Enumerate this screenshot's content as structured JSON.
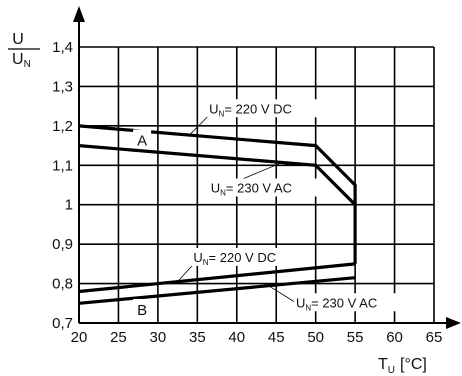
{
  "chart_data": {
    "type": "line",
    "title": "",
    "y_axis_label": {
      "numerator": "U",
      "denominator_main": "U",
      "denominator_sub": "N"
    },
    "x_axis_label": {
      "main": "T",
      "sub": "U",
      "unit": "[°C]"
    },
    "xlim": [
      20,
      65
    ],
    "ylim": [
      0.7,
      1.4
    ],
    "x_ticks": [
      20,
      25,
      30,
      35,
      40,
      45,
      50,
      55,
      60,
      65
    ],
    "x_tick_labels": [
      "20",
      "25",
      "30",
      "35",
      "40",
      "45",
      "50",
      "55",
      "60",
      "65"
    ],
    "y_ticks": [
      0.7,
      0.8,
      0.9,
      1.0,
      1.1,
      1.2,
      1.3,
      1.4
    ],
    "y_tick_labels": [
      "0,7",
      "0,8",
      "0,9",
      "1",
      "1,1",
      "1,2",
      "1,3",
      "1,4"
    ],
    "grid": true,
    "series": [
      {
        "name": "A",
        "x": [
          20,
          50,
          55,
          55
        ],
        "y": [
          1.2,
          1.15,
          1.05,
          1.0
        ]
      },
      {
        "name": "A",
        "x": [
          20,
          50,
          55,
          55
        ],
        "y": [
          1.15,
          1.1,
          1.0,
          0.85
        ]
      },
      {
        "name": "B",
        "x": [
          20,
          55
        ],
        "y": [
          0.78,
          0.85
        ]
      },
      {
        "name": "B",
        "x": [
          20,
          55
        ],
        "y": [
          0.75,
          0.815
        ]
      }
    ],
    "curve_labels": [
      {
        "text": "A",
        "x": 28,
        "y": 1.163
      },
      {
        "text": "B",
        "x": 28,
        "y": 0.733
      }
    ],
    "annotations": [
      {
        "prefix": "U",
        "sub": "N",
        "text": "= 220 V DC",
        "label_x": 36.5,
        "label_y": 1.237,
        "target_x": 34.0,
        "target_y": 1.177
      },
      {
        "prefix": "U",
        "sub": "N",
        "text": "= 230 V AC",
        "label_x": 36.7,
        "label_y": 1.036,
        "target_x": 45.5,
        "target_y": 1.105
      },
      {
        "prefix": "U",
        "sub": "N",
        "text": "= 220 V DC",
        "label_x": 34.5,
        "label_y": 0.86,
        "target_x": 32.5,
        "target_y": 0.805
      },
      {
        "prefix": "U",
        "sub": "N",
        "text": "= 230 V AC",
        "label_x": 47.5,
        "label_y": 0.745,
        "target_x": 44.0,
        "target_y": 0.795
      }
    ]
  }
}
